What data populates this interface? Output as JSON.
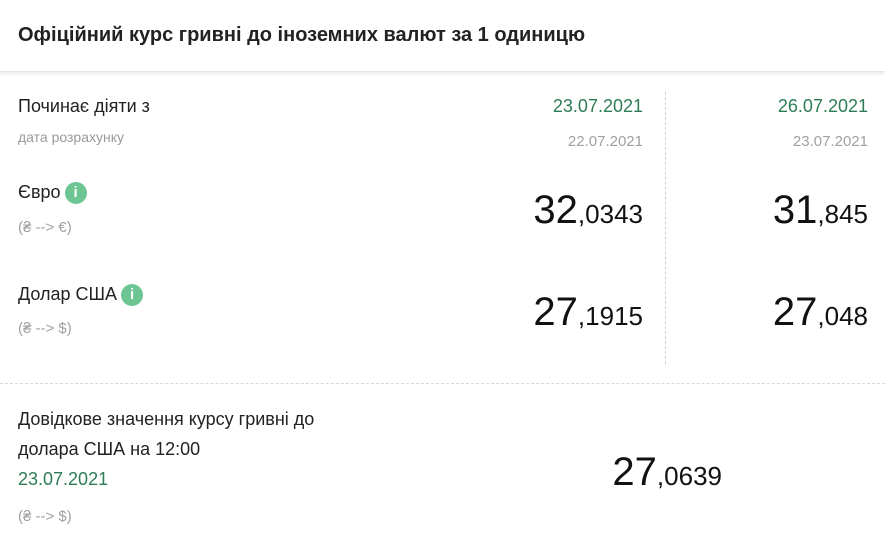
{
  "header": {
    "title": "Офіційний курс гривні до іноземних валют за 1 одиницю"
  },
  "labels": {
    "effective": "Починає діяти з",
    "calc_date": "дата розрахунку"
  },
  "columns": [
    {
      "effective_date": "23.07.2021",
      "calc_date": "22.07.2021"
    },
    {
      "effective_date": "26.07.2021",
      "calc_date": "23.07.2021"
    }
  ],
  "currencies": [
    {
      "name": "Євро",
      "direction": "(₴ --> €)",
      "info_icon": "i",
      "rates": [
        {
          "int": "32",
          "dec": ",0343"
        },
        {
          "int": "31",
          "dec": ",845"
        }
      ]
    },
    {
      "name": "Долар США",
      "direction": "(₴ --> $)",
      "info_icon": "i",
      "rates": [
        {
          "int": "27",
          "dec": ",1915"
        },
        {
          "int": "27",
          "dec": ",048"
        }
      ]
    }
  ],
  "reference": {
    "line1": "Довідкове значення курсу гривні до",
    "line2": "долара США на 12:00",
    "date": "23.07.2021",
    "direction": "(₴ --> $)",
    "rate": {
      "int": "27",
      "dec": ",0639"
    }
  },
  "colors": {
    "accent": "#2e7d56",
    "info": "#6cc592"
  }
}
